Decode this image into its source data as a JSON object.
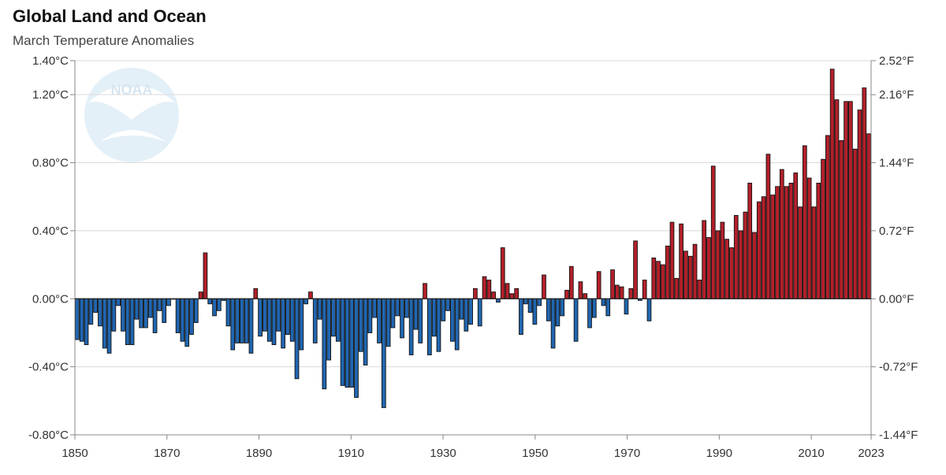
{
  "header": {
    "title": "Global Land and Ocean",
    "subtitle": "March Temperature Anomalies"
  },
  "logo": {
    "text": "NOAA",
    "icon": "noaa-logo-icon"
  },
  "colors": {
    "positive": "#b3202a",
    "negative": "#2166b0",
    "grid": "#d9d9d9",
    "axis": "#888888"
  },
  "chart_data": {
    "type": "bar",
    "title": "Global Land and Ocean",
    "subtitle": "March Temperature Anomalies",
    "x_start": 1850,
    "x_end": 2023,
    "x_ticks": [
      "1850",
      "1870",
      "1890",
      "1910",
      "1930",
      "1950",
      "1970",
      "1990",
      "2010",
      "2023"
    ],
    "ylim": [
      -0.8,
      1.4
    ],
    "y_ticks_left": [
      {
        "value": 1.4,
        "label": "1.40°C"
      },
      {
        "value": 1.2,
        "label": "1.20°C"
      },
      {
        "value": 0.8,
        "label": "0.80°C"
      },
      {
        "value": 0.4,
        "label": "0.40°C"
      },
      {
        "value": 0.0,
        "label": "0.00°C"
      },
      {
        "value": -0.4,
        "label": "-0.40°C"
      },
      {
        "value": -0.8,
        "label": "-0.80°C"
      }
    ],
    "y_ticks_right": [
      {
        "value": 1.4,
        "label": "2.52°F"
      },
      {
        "value": 1.2,
        "label": "2.16°F"
      },
      {
        "value": 0.8,
        "label": "1.44°F"
      },
      {
        "value": 0.4,
        "label": "0.72°F"
      },
      {
        "value": 0.0,
        "label": "0.00°F"
      },
      {
        "value": -0.4,
        "label": "-0.72°F"
      },
      {
        "value": -0.8,
        "label": "-1.44°F"
      }
    ],
    "grid": true,
    "values": [
      -0.24,
      -0.25,
      -0.27,
      -0.15,
      -0.08,
      -0.16,
      -0.29,
      -0.32,
      -0.19,
      -0.04,
      -0.19,
      -0.27,
      -0.27,
      -0.12,
      -0.17,
      -0.17,
      -0.11,
      -0.2,
      -0.07,
      -0.14,
      -0.04,
      0.0,
      -0.2,
      -0.25,
      -0.28,
      -0.21,
      -0.14,
      0.04,
      0.27,
      -0.03,
      -0.1,
      -0.07,
      -0.01,
      -0.16,
      -0.3,
      -0.26,
      -0.26,
      -0.26,
      -0.32,
      0.06,
      -0.22,
      -0.19,
      -0.25,
      -0.27,
      -0.19,
      -0.29,
      -0.21,
      -0.25,
      -0.47,
      -0.3,
      -0.03,
      0.04,
      -0.26,
      -0.12,
      -0.53,
      -0.36,
      -0.22,
      -0.25,
      -0.51,
      -0.52,
      -0.52,
      -0.58,
      -0.31,
      -0.39,
      -0.2,
      -0.11,
      -0.26,
      -0.64,
      -0.28,
      -0.17,
      -0.1,
      -0.23,
      -0.11,
      -0.33,
      -0.18,
      -0.26,
      0.09,
      -0.33,
      -0.22,
      -0.31,
      -0.13,
      -0.07,
      -0.25,
      -0.3,
      -0.12,
      -0.19,
      -0.15,
      0.06,
      -0.16,
      0.13,
      0.11,
      0.04,
      -0.02,
      0.3,
      0.09,
      0.03,
      0.06,
      -0.21,
      -0.03,
      -0.08,
      -0.15,
      -0.04,
      0.14,
      -0.13,
      -0.29,
      -0.16,
      -0.1,
      0.05,
      0.19,
      -0.25,
      0.1,
      0.03,
      -0.17,
      -0.11,
      0.16,
      -0.04,
      -0.1,
      0.17,
      0.08,
      0.07,
      -0.09,
      0.06,
      0.34,
      -0.01,
      0.11,
      -0.13,
      0.24,
      0.22,
      0.2,
      0.31,
      0.45,
      0.12,
      0.44,
      0.28,
      0.25,
      0.32,
      0.11,
      0.46,
      0.36,
      0.78,
      0.4,
      0.45,
      0.35,
      0.3,
      0.49,
      0.4,
      0.51,
      0.68,
      0.39,
      0.57,
      0.6,
      0.85,
      0.61,
      0.66,
      0.76,
      0.66,
      0.68,
      0.74,
      0.54,
      0.9,
      0.71,
      0.54,
      0.68,
      0.82,
      0.96,
      1.35,
      1.17,
      0.93,
      1.16,
      1.16,
      0.88,
      1.11,
      1.24,
      0.97
    ]
  }
}
